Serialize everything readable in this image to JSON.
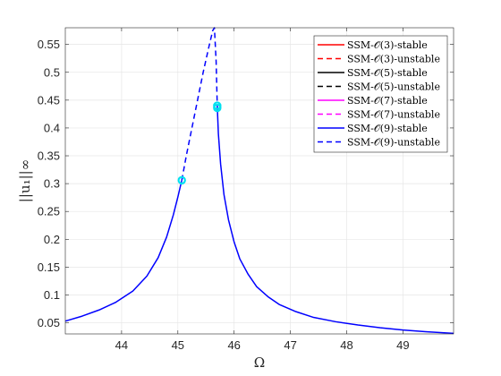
{
  "chart_data": {
    "type": "line",
    "title": "",
    "xlabel": "Ω",
    "ylabel": "||u₁||∞",
    "xlim": [
      43,
      49.9
    ],
    "ylim": [
      0.03,
      0.58
    ],
    "xticks": [
      44,
      45,
      46,
      47,
      48,
      49
    ],
    "yticks": [
      0.05,
      0.1,
      0.15,
      0.2,
      0.25,
      0.3,
      0.35,
      0.4,
      0.45,
      0.5,
      0.55
    ],
    "grid": true,
    "legend_position": "top-right",
    "legend": [
      {
        "label": "SSM-𝒪(3)-stable",
        "color": "#ff0000",
        "dash": "solid"
      },
      {
        "label": "SSM-𝒪(3)-unstable",
        "color": "#ff0000",
        "dash": "dashed"
      },
      {
        "label": "SSM-𝒪(5)-stable",
        "color": "#000000",
        "dash": "solid"
      },
      {
        "label": "SSM-𝒪(5)-unstable",
        "color": "#000000",
        "dash": "dashed"
      },
      {
        "label": "SSM-𝒪(7)-stable",
        "color": "#ff00ff",
        "dash": "solid"
      },
      {
        "label": "SSM-𝒪(7)-unstable",
        "color": "#ff00ff",
        "dash": "dashed"
      },
      {
        "label": "SSM-𝒪(9)-stable",
        "color": "#0000ff",
        "dash": "solid"
      },
      {
        "label": "SSM-𝒪(9)-unstable",
        "color": "#0000ff",
        "dash": "dashed"
      }
    ],
    "series": [
      {
        "name": "SSM-𝒪(9)-stable",
        "style": "solid",
        "color": "#0000ff",
        "x": [
          43.0,
          43.3,
          43.6,
          43.9,
          44.2,
          44.45,
          44.65,
          44.8,
          44.92,
          45.0,
          45.07
        ],
        "y": [
          0.053,
          0.062,
          0.073,
          0.087,
          0.107,
          0.134,
          0.167,
          0.204,
          0.244,
          0.276,
          0.306
        ]
      },
      {
        "name": "SSM-𝒪(9)-unstable",
        "style": "dashed",
        "color": "#0000ff",
        "x": [
          45.07,
          45.15,
          45.25,
          45.35,
          45.45,
          45.55,
          45.62,
          45.65,
          45.68,
          45.7
        ],
        "y": [
          0.306,
          0.35,
          0.4,
          0.45,
          0.5,
          0.545,
          0.575,
          0.58,
          0.52,
          0.44
        ]
      },
      {
        "name": "SSM-𝒪(9)-stable",
        "style": "solid",
        "color": "#0000ff",
        "x": [
          45.7,
          45.72,
          45.76,
          45.82,
          45.9,
          46.0,
          46.1,
          46.25,
          46.4,
          46.6,
          46.8,
          47.1,
          47.4,
          47.8,
          48.2,
          48.6,
          49.0,
          49.4,
          49.9
        ],
        "y": [
          0.44,
          0.39,
          0.335,
          0.28,
          0.235,
          0.195,
          0.165,
          0.137,
          0.115,
          0.097,
          0.083,
          0.07,
          0.06,
          0.052,
          0.046,
          0.041,
          0.037,
          0.034,
          0.031
        ]
      }
    ],
    "markers": [
      {
        "x": 45.07,
        "y": 0.306,
        "color": "#00e0f0"
      },
      {
        "x": 45.7,
        "y": 0.44,
        "color": "#00e0f0"
      },
      {
        "x": 45.7,
        "y": 0.436,
        "color": "#00e0f0"
      }
    ]
  }
}
